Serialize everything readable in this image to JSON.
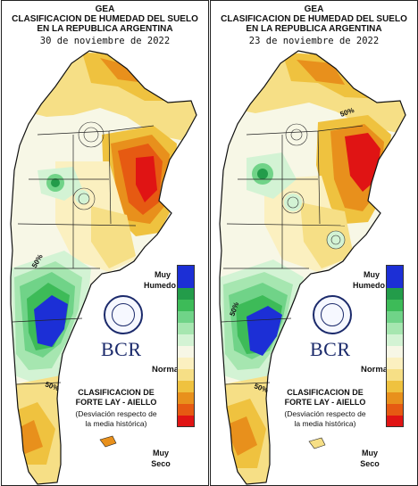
{
  "header": {
    "org": "GEA",
    "title_line1": "CLASIFICACION DE HUMEDAD DEL SUELO",
    "title_line2": "EN LA REPUBLICA ARGENTINA"
  },
  "maps": [
    {
      "date": "30 de noviembre de 2022",
      "iso_label_a": "50%",
      "iso_label_b": "50%"
    },
    {
      "date": "23 de noviembre de 2022",
      "iso_label_a": "50%",
      "iso_label_b": "50%",
      "iso_label_c": "50%"
    }
  ],
  "legend": {
    "top_label_1": "Muy",
    "top_label_2": "Humedo",
    "mid_label": "Normal",
    "bottom_label_1": "Muy",
    "bottom_label_2": "Seco",
    "colors": [
      "#1c2fd6",
      "#1c2fd6",
      "#239c4a",
      "#3dbb58",
      "#70d388",
      "#a6e6b0",
      "#d3f3d4",
      "#f7f7e6",
      "#fbf0c0",
      "#f6df86",
      "#efc23f",
      "#e8901c",
      "#e65a12",
      "#e01414"
    ]
  },
  "caption": {
    "line1": "CLASIFICACION DE",
    "line2": "FORTE LAY - AIELLO",
    "line3": "(Desviación respecto de",
    "line4": "la media histórica)"
  },
  "logo": {
    "text": "BCR",
    "seal_text": "BOLSA DE COMERCIO DE ROSARIO"
  }
}
